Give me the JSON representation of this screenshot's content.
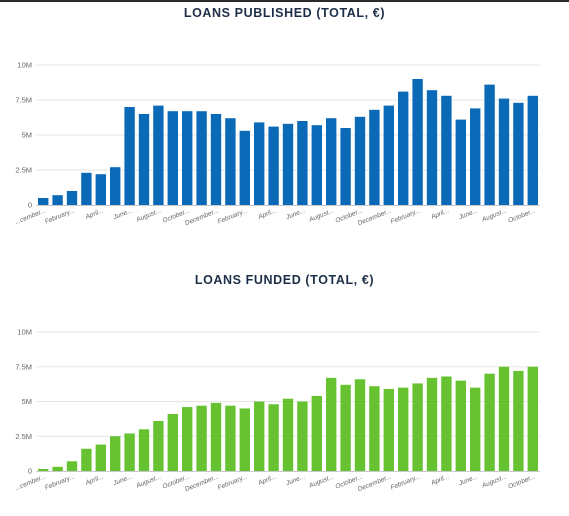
{
  "chart_data": [
    {
      "type": "bar",
      "title": "LOANS PUBLISHED (TOTAL, €)",
      "color": "#0a6ab8",
      "ylim": [
        0,
        10000000
      ],
      "yticks": [
        0,
        2500000,
        5000000,
        7500000,
        10000000
      ],
      "ytick_labels": [
        "0",
        "2.5M",
        "5M",
        "7.5M",
        "10M"
      ],
      "xtick_labels": [
        "...cember...",
        "February...",
        "April...",
        "June...",
        "August...",
        "October...",
        "December...",
        "February...",
        "April...",
        "June...",
        "August...",
        "October...",
        "December...",
        "February...",
        "April...",
        "June...",
        "August...",
        "October..."
      ],
      "values": [
        500000,
        700000,
        1000000,
        2300000,
        2200000,
        2700000,
        7000000,
        6500000,
        7100000,
        6700000,
        6700000,
        6700000,
        6500000,
        6200000,
        5300000,
        5900000,
        5600000,
        5800000,
        6000000,
        5700000,
        6200000,
        5500000,
        6300000,
        6800000,
        7100000,
        8100000,
        9000000,
        8200000,
        7800000,
        6100000,
        6900000,
        8600000,
        7600000,
        7300000,
        7800000
      ],
      "xlabel": "",
      "ylabel": "",
      "grid": true,
      "legend": false
    },
    {
      "type": "bar",
      "title": "LOANS FUNDED (TOTAL, €)",
      "color": "#66c230",
      "ylim": [
        0,
        10000000
      ],
      "yticks": [
        0,
        2500000,
        5000000,
        7500000,
        10000000
      ],
      "ytick_labels": [
        "0",
        "2.5M",
        "5M",
        "7.5M",
        "10M"
      ],
      "xtick_labels": [
        "...cember...",
        "February...",
        "April...",
        "June...",
        "August...",
        "October...",
        "December...",
        "February...",
        "April...",
        "June...",
        "August...",
        "October...",
        "December...",
        "February...",
        "April...",
        "June...",
        "August...",
        "October..."
      ],
      "values": [
        150000,
        300000,
        700000,
        1600000,
        1900000,
        2500000,
        2700000,
        3000000,
        3600000,
        4100000,
        4600000,
        4700000,
        4900000,
        4700000,
        4500000,
        5000000,
        4800000,
        5200000,
        5000000,
        5400000,
        6700000,
        6200000,
        6600000,
        6100000,
        5900000,
        6000000,
        6300000,
        6700000,
        6800000,
        6500000,
        6000000,
        7000000,
        7500000,
        7200000,
        7500000
      ],
      "xlabel": "",
      "ylabel": "",
      "grid": true,
      "legend": false
    }
  ]
}
